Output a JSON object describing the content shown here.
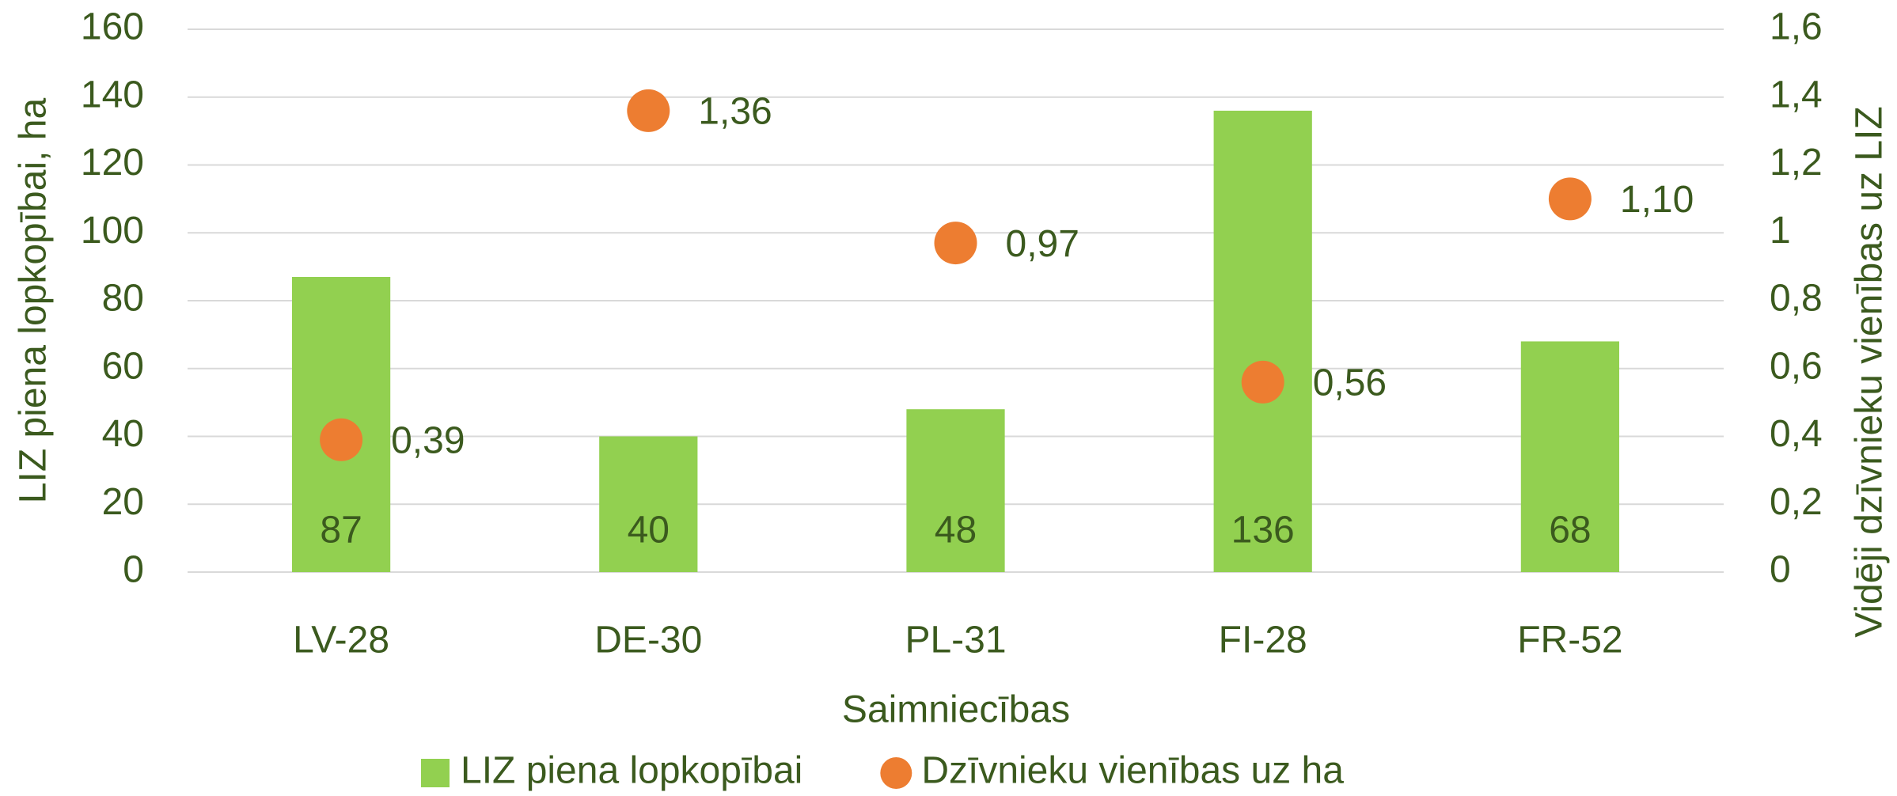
{
  "chart_data": {
    "type": "bar",
    "categories": [
      "LV-28",
      "DE-30",
      "PL-31",
      "FI-28",
      "FR-52"
    ],
    "series": [
      {
        "name": "LIZ piena lopkopībai",
        "type": "bar",
        "color": "#92d050",
        "values": [
          87,
          40,
          48,
          136,
          68
        ]
      },
      {
        "name": "Dzīvnieku vienības uz ha",
        "type": "scatter",
        "axis": "y2",
        "color": "#ed7d31",
        "values": [
          0.39,
          1.36,
          0.97,
          0.56,
          1.1
        ],
        "value_labels": [
          "0,39",
          "1,36",
          "0,97",
          "0,56",
          "1,10"
        ]
      }
    ],
    "x_label": "Saimniecības",
    "y_label": "LIZ piena lopkopībai, ha",
    "y2_label": "Vidēji dzīvnieku vienības uz LIZ",
    "ylim": [
      0,
      160
    ],
    "yticks": [
      0,
      20,
      40,
      60,
      80,
      100,
      120,
      140,
      160
    ],
    "y2lim": [
      0,
      1.6
    ],
    "y2ticks": [
      {
        "value": 0,
        "label": "0"
      },
      {
        "value": 0.2,
        "label": "0,2"
      },
      {
        "value": 0.4,
        "label": "0,4"
      },
      {
        "value": 0.6,
        "label": "0,6"
      },
      {
        "value": 0.8,
        "label": "0,8"
      },
      {
        "value": 1,
        "label": "1"
      },
      {
        "value": 1.2,
        "label": "1,2"
      },
      {
        "value": 1.4,
        "label": "1,4"
      },
      {
        "value": 1.6,
        "label": "1,6"
      }
    ],
    "grid": true,
    "legend": "bottom"
  }
}
